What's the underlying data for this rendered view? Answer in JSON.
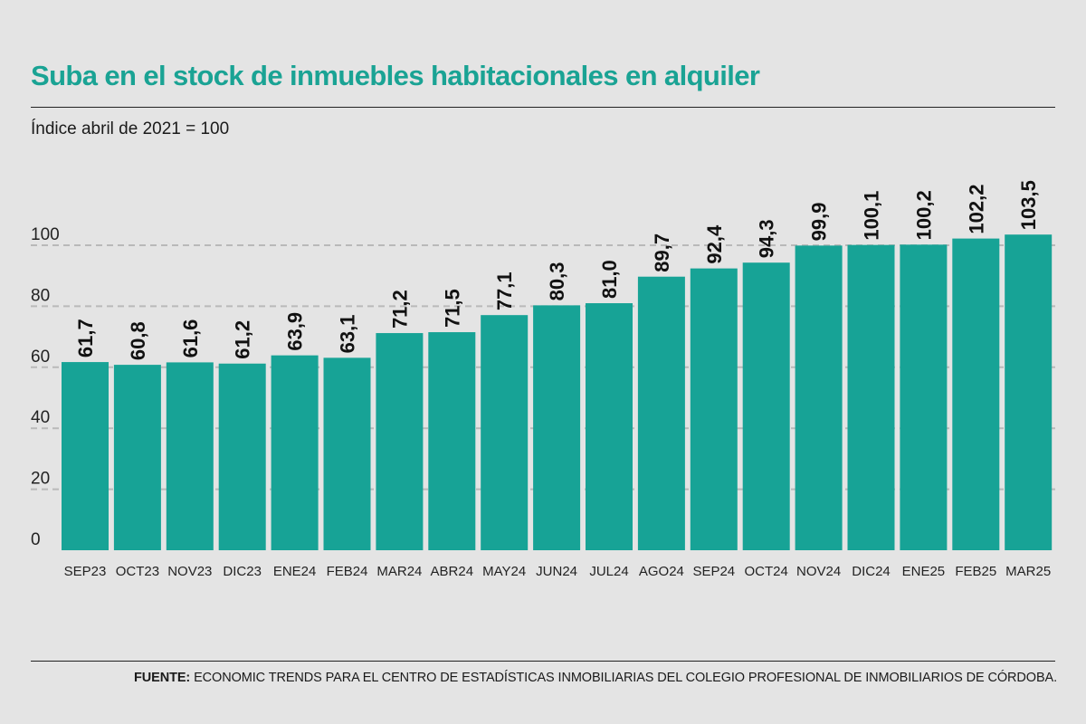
{
  "title": "Suba en el stock de inmuebles habitacionales en alquiler",
  "subtitle": "Índice abril de 2021 = 100",
  "source": {
    "label": "FUENTE:",
    "text": "ECONOMIC TRENDS PARA EL CENTRO DE ESTADÍSTICAS INMOBILIARIAS DEL COLEGIO PROFESIONAL DE INMOBILIARIOS DE CÓRDOBA."
  },
  "colors": {
    "bar": "#17a396",
    "title": "#1aa394",
    "grid": "#b9b9b9"
  },
  "chart_data": {
    "type": "bar",
    "categories": [
      "SEP23",
      "OCT23",
      "NOV23",
      "DIC23",
      "ENE24",
      "FEB24",
      "MAR24",
      "ABR24",
      "MAY24",
      "JUN24",
      "JUL24",
      "AGO24",
      "SEP24",
      "OCT24",
      "NOV24",
      "DIC24",
      "ENE25",
      "FEB25",
      "MAR25"
    ],
    "values": [
      61.7,
      60.8,
      61.6,
      61.2,
      63.9,
      63.1,
      71.2,
      71.5,
      77.1,
      80.3,
      81.0,
      89.7,
      92.4,
      94.3,
      99.9,
      100.1,
      100.2,
      102.2,
      103.5
    ],
    "value_labels": [
      "61,7",
      "60,8",
      "61,6",
      "61,2",
      "63,9",
      "63,1",
      "71,2",
      "71,5",
      "77,1",
      "80,3",
      "81,0",
      "89,7",
      "92,4",
      "94,3",
      "99,9",
      "100,1",
      "100,2",
      "102,2",
      "103,5"
    ],
    "yticks": [
      "0",
      "20",
      "40",
      "60",
      "80",
      "100"
    ],
    "ylim": [
      0,
      110
    ],
    "grid": true
  }
}
